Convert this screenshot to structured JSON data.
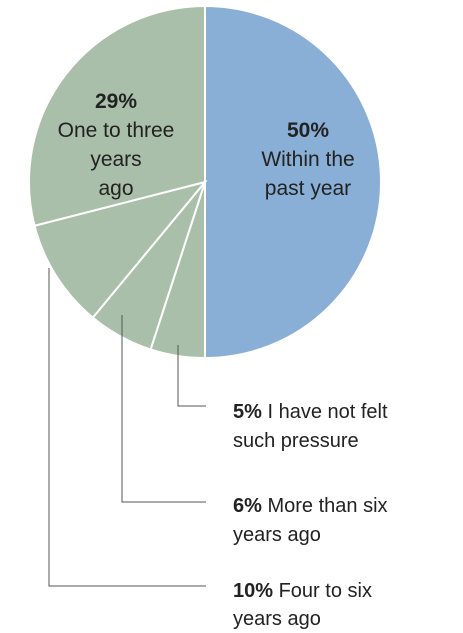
{
  "chart_data": {
    "type": "pie",
    "title": "",
    "legend": "none",
    "slices": [
      {
        "value": 50,
        "pct_label": "50%",
        "label_lines": [
          "Within the",
          "past year"
        ],
        "color": "#89afd6"
      },
      {
        "value": 5,
        "pct_label": "5%",
        "label_lines": [
          "I have not felt",
          "such pressure"
        ],
        "color": "#a9bfa9"
      },
      {
        "value": 6,
        "pct_label": "6%",
        "label_lines": [
          "More than six",
          "years ago"
        ],
        "color": "#a9bfa9"
      },
      {
        "value": 10,
        "pct_label": "10%",
        "label_lines": [
          "Four to six",
          "years ago"
        ],
        "color": "#a9bfa9"
      },
      {
        "value": 29,
        "pct_label": "29%",
        "label_lines": [
          "One to three",
          "years",
          "ago"
        ],
        "color": "#a9bfa9"
      }
    ],
    "start": "12 o'clock",
    "direction": "clockwise"
  }
}
